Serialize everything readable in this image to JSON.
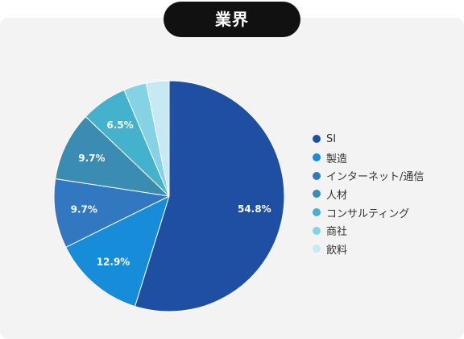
{
  "chart_data": {
    "type": "pie",
    "title": "業界",
    "categories": [
      "SI",
      "製造",
      "インターネット/通信",
      "人材",
      "コンサルティング",
      "商社",
      "飲料"
    ],
    "values": [
      54.8,
      12.9,
      9.7,
      9.7,
      6.5,
      3.2,
      3.2
    ],
    "data_labels": [
      "54.8%",
      "12.9%",
      "9.7%",
      "9.7%",
      "6.5%",
      "",
      ""
    ],
    "colors": [
      "#1f4fa3",
      "#178cd9",
      "#3178c1",
      "#3a8cb3",
      "#45b2cd",
      "#86d2e5",
      "#c6e9f3"
    ],
    "start": "top",
    "direction": "clockwise",
    "legend_position": "right"
  }
}
